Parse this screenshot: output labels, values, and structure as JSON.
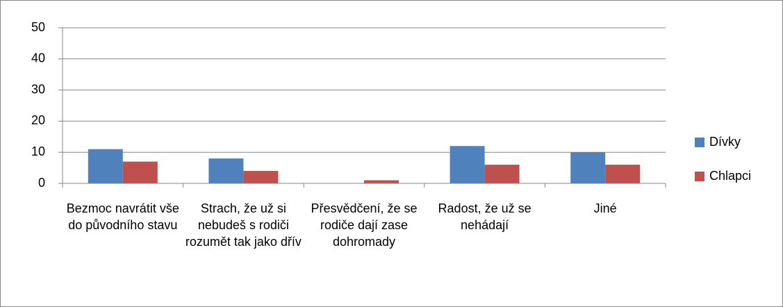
{
  "chart_data": {
    "type": "bar",
    "categories": [
      "Bezmoc navrátit vše do původního stavu",
      "Strach, že už si nebudeš s rodiči rozumět tak jako dřív",
      "Přesvědčení, že se rodiče dají zase dohromady",
      "Radost, že už se nehádají",
      "Jiné"
    ],
    "series": [
      {
        "name": "Dívky",
        "color": "#4f81bd",
        "values": [
          11,
          8,
          0,
          12,
          10
        ]
      },
      {
        "name": "Chlapci",
        "color": "#c0504d",
        "values": [
          7,
          4,
          1,
          6,
          6
        ]
      }
    ],
    "ylim": [
      0,
      50
    ],
    "yticks": [
      0,
      10,
      20,
      30,
      40,
      50
    ],
    "grid": true,
    "legend": "right"
  }
}
